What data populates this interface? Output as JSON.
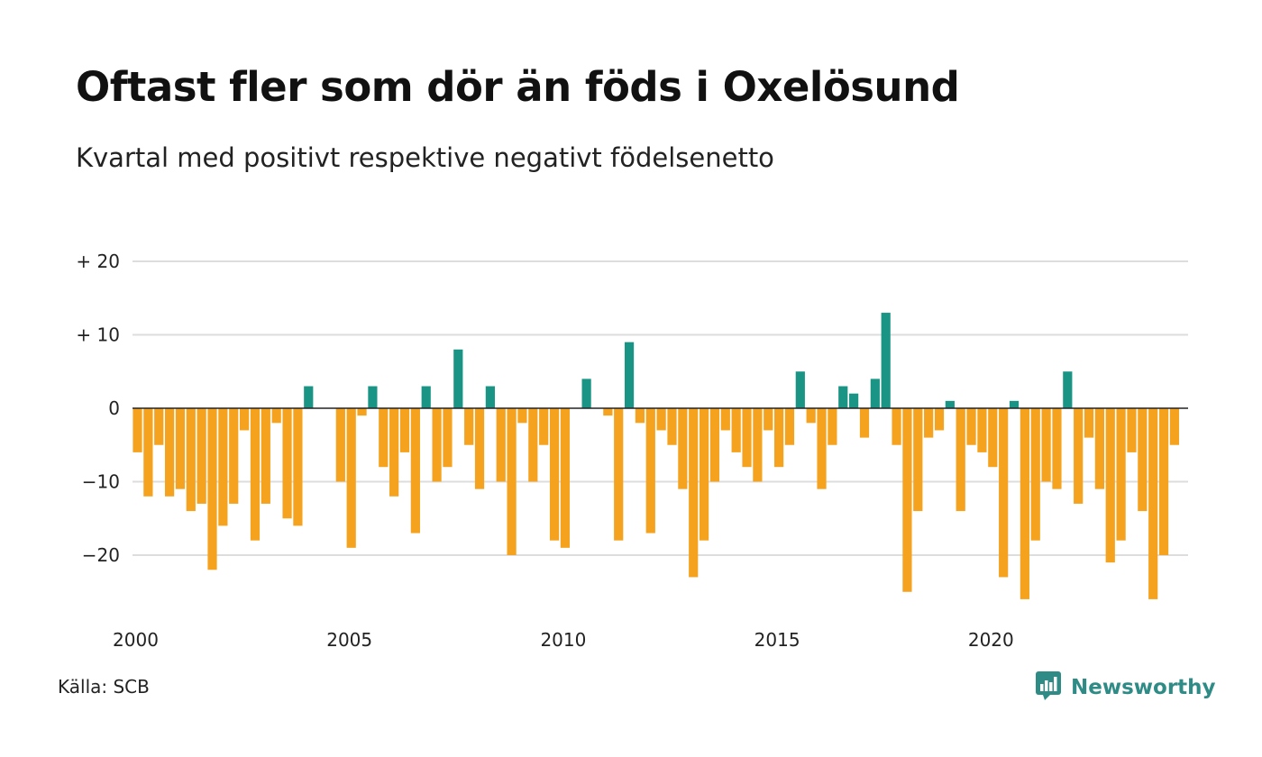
{
  "header": {
    "title": "Oftast fler som dör än föds i Oxelösund",
    "subtitle": "Kvartal med positivt respektive negativt födelsenetto"
  },
  "footer": {
    "source": "Källa: SCB",
    "brand": "Newsworthy"
  },
  "colors": {
    "positive": "#1a9585",
    "negative": "#f5a21e",
    "grid": "#dddddd",
    "zero_line": "#222222",
    "brand": "#2e8b86"
  },
  "icons": {
    "brand_logo": "newsworthy-chart-speech-bubble-icon"
  },
  "chart_data": {
    "type": "bar",
    "x_start": "2000 Q1",
    "x_tick_labels": [
      "2000",
      "2005",
      "2010",
      "2015",
      "2020"
    ],
    "y_tick_labels": [
      "+ 20",
      "+ 10",
      "0",
      "−10",
      "−20"
    ],
    "y_ticks": [
      20,
      10,
      0,
      -10,
      -20
    ],
    "ylim": [
      -28,
      20
    ],
    "grid": true,
    "values": [
      -6,
      -12,
      -5,
      -12,
      -11,
      -14,
      -13,
      -22,
      -16,
      -13,
      -3,
      -18,
      -13,
      -2,
      -15,
      -16,
      3,
      0,
      0,
      -10,
      -19,
      -1,
      3,
      -8,
      -12,
      -6,
      -17,
      3,
      -10,
      -8,
      8,
      -5,
      -11,
      3,
      -10,
      -20,
      -2,
      -10,
      -5,
      -18,
      -19,
      0,
      4,
      0,
      -1,
      -18,
      9,
      -2,
      -17,
      -3,
      -5,
      -11,
      -23,
      -18,
      -10,
      -3,
      -6,
      -8,
      -10,
      -3,
      -8,
      -5,
      5,
      -2,
      -11,
      -5,
      3,
      2,
      -4,
      4,
      13,
      -5,
      -25,
      -14,
      -4,
      -3,
      1,
      -14,
      -5,
      -6,
      -8,
      -23,
      1,
      -26,
      -18,
      -10,
      -11,
      5,
      -13,
      -4,
      -11,
      -21,
      -18,
      -6,
      -14,
      -26,
      -20,
      -5
    ]
  }
}
